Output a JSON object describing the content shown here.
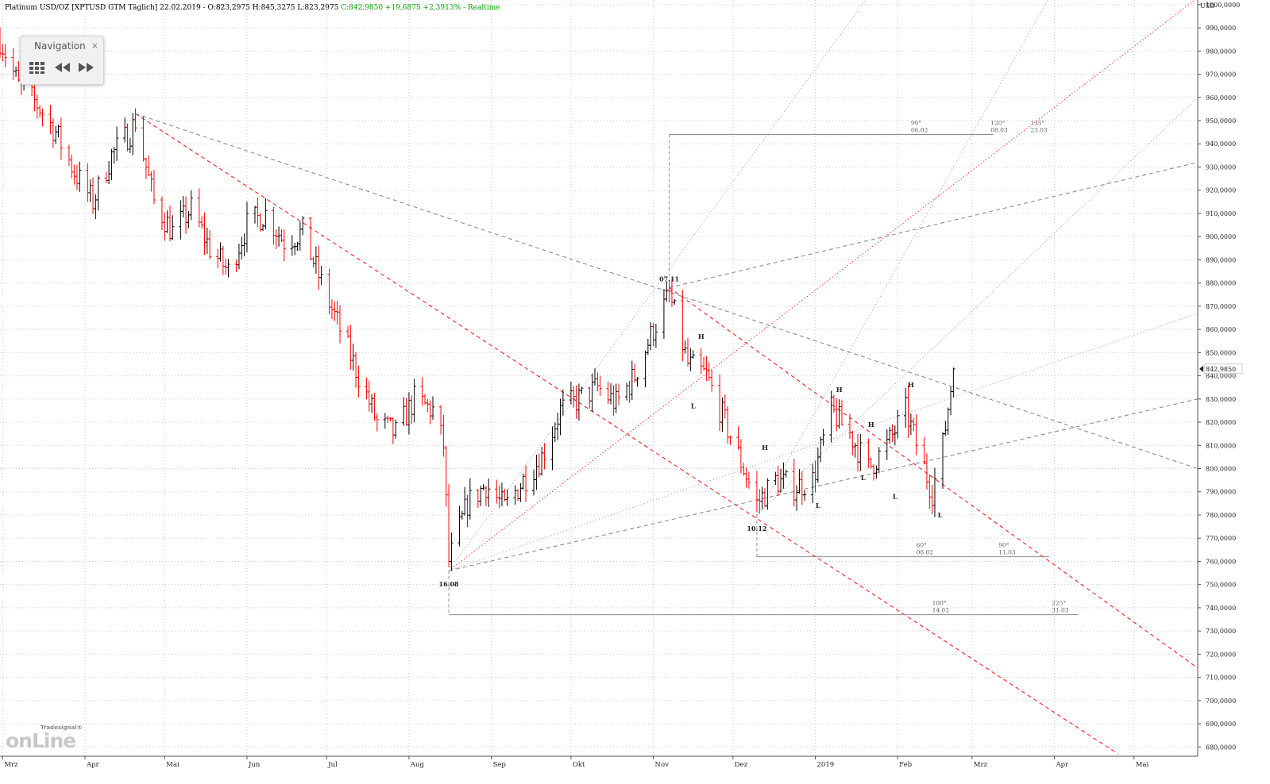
{
  "header": {
    "text": "Platinum USD/OZ [XPTUSD GTM Täglich] 22.02.2019 - O:823,2975 H:845,3275 L:823,2975",
    "change_text": "C:842,9850 +19,6875 +2,3913% - Realtime"
  },
  "nav_panel": {
    "title": "Navigation",
    "close_label": "×"
  },
  "logo": {
    "brand_top": "Tradesignal®",
    "brand_main": "onLine"
  },
  "colors": {
    "up_bar": "#000000",
    "down_bar": "#ff0000",
    "grid": "#c9c9c9",
    "change_text": "#00a000"
  },
  "chart_data": {
    "type": "ohlc",
    "title": "Platinum USD/OZ [XPTUSD GTM Täglich]",
    "currency_label": "USD",
    "last_price_label": "842,9850",
    "last_price": 842.985,
    "ylim": [
      676,
      1002
    ],
    "y_ticks": [
      680,
      690,
      700,
      710,
      720,
      730,
      740,
      750,
      760,
      770,
      780,
      790,
      800,
      810,
      820,
      830,
      840,
      850,
      860,
      870,
      880,
      890,
      900,
      910,
      920,
      930,
      940,
      950,
      960,
      970,
      980,
      990,
      1000
    ],
    "y_tick_suffix": ",0000",
    "x_ticks": [
      {
        "label": "Mrz",
        "date": "2018-03-01"
      },
      {
        "label": "Apr",
        "date": "2018-04-01"
      },
      {
        "label": "Mai",
        "date": "2018-05-01"
      },
      {
        "label": "Jun",
        "date": "2018-06-01"
      },
      {
        "label": "Jul",
        "date": "2018-07-01"
      },
      {
        "label": "Aug",
        "date": "2018-08-01"
      },
      {
        "label": "Sep",
        "date": "2018-09-01"
      },
      {
        "label": "Okt",
        "date": "2018-10-01"
      },
      {
        "label": "Nov",
        "date": "2018-11-01"
      },
      {
        "label": "Dez",
        "date": "2018-12-01"
      },
      {
        "label": "2019",
        "date": "2019-01-01"
      },
      {
        "label": "Feb",
        "date": "2019-02-01"
      },
      {
        "label": "Mrz",
        "date": "2019-03-01"
      },
      {
        "label": "Apr",
        "date": "2019-04-01"
      },
      {
        "label": "Mai",
        "date": "2019-05-01"
      }
    ],
    "x_range": [
      "2018-02-28",
      "2019-05-25"
    ],
    "grid": true,
    "bars": [
      {
        "date": "2018-02-28",
        "close": 985
      },
      {
        "date": "2018-03-07",
        "close": 965
      },
      {
        "date": "2018-03-14",
        "close": 957
      },
      {
        "date": "2018-03-21",
        "close": 945
      },
      {
        "date": "2018-03-28",
        "close": 928
      },
      {
        "date": "2018-04-04",
        "close": 915
      },
      {
        "date": "2018-04-11",
        "close": 935
      },
      {
        "date": "2018-04-18",
        "close": 945
      },
      {
        "date": "2018-04-20",
        "close": 950
      },
      {
        "date": "2018-04-27",
        "close": 915
      },
      {
        "date": "2018-05-04",
        "close": 902
      },
      {
        "date": "2018-05-11",
        "close": 912
      },
      {
        "date": "2018-05-18",
        "close": 895
      },
      {
        "date": "2018-05-25",
        "close": 885
      },
      {
        "date": "2018-06-01",
        "close": 905
      },
      {
        "date": "2018-06-08",
        "close": 910
      },
      {
        "date": "2018-06-15",
        "close": 898
      },
      {
        "date": "2018-06-22",
        "close": 902
      },
      {
        "date": "2018-06-29",
        "close": 880
      },
      {
        "date": "2018-07-06",
        "close": 860
      },
      {
        "date": "2018-07-13",
        "close": 840
      },
      {
        "date": "2018-07-20",
        "close": 820
      },
      {
        "date": "2018-07-27",
        "close": 815
      },
      {
        "date": "2018-08-03",
        "close": 830
      },
      {
        "date": "2018-08-10",
        "close": 825
      },
      {
        "date": "2018-08-14",
        "close": 810
      },
      {
        "date": "2018-08-16",
        "close": 760
      },
      {
        "date": "2018-08-23",
        "close": 785
      },
      {
        "date": "2018-08-30",
        "close": 793
      },
      {
        "date": "2018-09-06",
        "close": 783
      },
      {
        "date": "2018-09-13",
        "close": 795
      },
      {
        "date": "2018-09-20",
        "close": 805
      },
      {
        "date": "2018-09-27",
        "close": 825
      },
      {
        "date": "2018-10-04",
        "close": 830
      },
      {
        "date": "2018-10-11",
        "close": 835
      },
      {
        "date": "2018-10-18",
        "close": 828
      },
      {
        "date": "2018-10-25",
        "close": 840
      },
      {
        "date": "2018-11-01",
        "close": 860
      },
      {
        "date": "2018-11-07",
        "close": 875
      },
      {
        "date": "2018-11-14",
        "close": 845
      },
      {
        "date": "2018-11-21",
        "close": 840
      },
      {
        "date": "2018-11-28",
        "close": 820
      },
      {
        "date": "2018-12-05",
        "close": 800
      },
      {
        "date": "2018-12-10",
        "close": 785
      },
      {
        "date": "2018-12-17",
        "close": 795
      },
      {
        "date": "2018-12-24",
        "close": 792
      },
      {
        "date": "2018-12-31",
        "close": 795
      },
      {
        "date": "2019-01-07",
        "close": 825
      },
      {
        "date": "2019-01-14",
        "close": 815
      },
      {
        "date": "2019-01-21",
        "close": 800
      },
      {
        "date": "2019-01-28",
        "close": 810
      },
      {
        "date": "2019-02-04",
        "close": 825
      },
      {
        "date": "2019-02-11",
        "close": 800
      },
      {
        "date": "2019-02-14",
        "close": 790
      },
      {
        "date": "2019-02-18",
        "close": 810
      },
      {
        "date": "2019-02-22",
        "close": 843
      }
    ],
    "pivots": [
      {
        "label": "07.11",
        "date": "2018-11-07",
        "price": 878
      },
      {
        "label": "16.08",
        "date": "2018-08-16",
        "price": 756
      },
      {
        "label": "10.12",
        "date": "2018-12-10",
        "price": 780
      }
    ],
    "pattern_labels": [
      {
        "text": "L",
        "date": "2018-11-16",
        "price": 826
      },
      {
        "text": "H",
        "date": "2018-11-19",
        "price": 856
      },
      {
        "text": "H",
        "date": "2018-12-13",
        "price": 808
      },
      {
        "text": "L",
        "date": "2019-01-02",
        "price": 783
      },
      {
        "text": "H",
        "date": "2019-01-10",
        "price": 833
      },
      {
        "text": "H",
        "date": "2019-01-22",
        "price": 818
      },
      {
        "text": "L",
        "date": "2019-01-19",
        "price": 795
      },
      {
        "text": "L",
        "date": "2019-01-31",
        "price": 787
      },
      {
        "text": "H",
        "date": "2019-02-06",
        "price": 835
      },
      {
        "text": "L",
        "date": "2019-02-17",
        "price": 779
      }
    ],
    "trend_lines": [
      {
        "style": "dashed-red",
        "from": {
          "date": "2018-04-20",
          "price": 953
        },
        "to": {
          "date": "2019-04-25",
          "price": 677
        }
      },
      {
        "style": "dashed-red",
        "from": {
          "date": "2018-11-07",
          "price": 878
        },
        "to": {
          "date": "2019-05-25",
          "price": 714
        }
      },
      {
        "style": "dashed-gray",
        "from": {
          "date": "2018-04-20",
          "price": 953
        },
        "to": {
          "date": "2019-05-25",
          "price": 800
        }
      },
      {
        "style": "dashed-gray",
        "from": {
          "date": "2018-11-07",
          "price": 878
        },
        "to": {
          "date": "2019-05-25",
          "price": 932
        }
      },
      {
        "style": "dashed-gray",
        "from": {
          "date": "2018-08-16",
          "price": 756
        },
        "to": {
          "date": "2019-05-25",
          "price": 830
        }
      }
    ],
    "gann_fans": [
      {
        "origin": {
          "date": "2018-08-16",
          "price": 756
        },
        "lines": [
          {
            "style": "dotted-red",
            "to": {
              "date": "2019-05-25",
              "price": 1003
            }
          },
          {
            "style": "dotted-red",
            "to": {
              "date": "2019-05-25",
              "price": 1003
            }
          },
          {
            "style": "dotted-gray",
            "to": {
              "date": "2019-01-20",
              "price": 1002
            }
          },
          {
            "style": "dotted-gray",
            "to": {
              "date": "2019-05-25",
              "price": 867
            }
          }
        ]
      },
      {
        "origin": {
          "date": "2018-12-10",
          "price": 780
        },
        "lines": [
          {
            "style": "dotted-gray",
            "to": {
              "date": "2019-03-30",
              "price": 1003
            }
          },
          {
            "style": "dotted-gray",
            "to": {
              "date": "2019-05-25",
              "price": 960
            }
          }
        ]
      }
    ],
    "time_cycles": [
      {
        "origin": {
          "date": "2018-11-07",
          "price": 878
        },
        "level": 944,
        "end": "2019-03-09",
        "marks": [
          {
            "angle": "90°",
            "date": "06.02"
          },
          {
            "angle": "120°",
            "date": "08.03"
          },
          {
            "angle": "135°",
            "date": "23.03"
          }
        ]
      },
      {
        "origin": {
          "date": "2018-12-10",
          "price": 780
        },
        "level": 762,
        "end": "2019-03-30",
        "marks": [
          {
            "angle": "60°",
            "date": "08.02"
          },
          {
            "angle": "90°",
            "date": "11.03"
          }
        ]
      },
      {
        "origin": {
          "date": "2018-08-16",
          "price": 756
        },
        "level": 737,
        "end": "2019-04-10",
        "marks": [
          {
            "angle": "180°",
            "date": "14.02"
          },
          {
            "angle": "225°",
            "date": "31.03"
          }
        ]
      }
    ]
  }
}
